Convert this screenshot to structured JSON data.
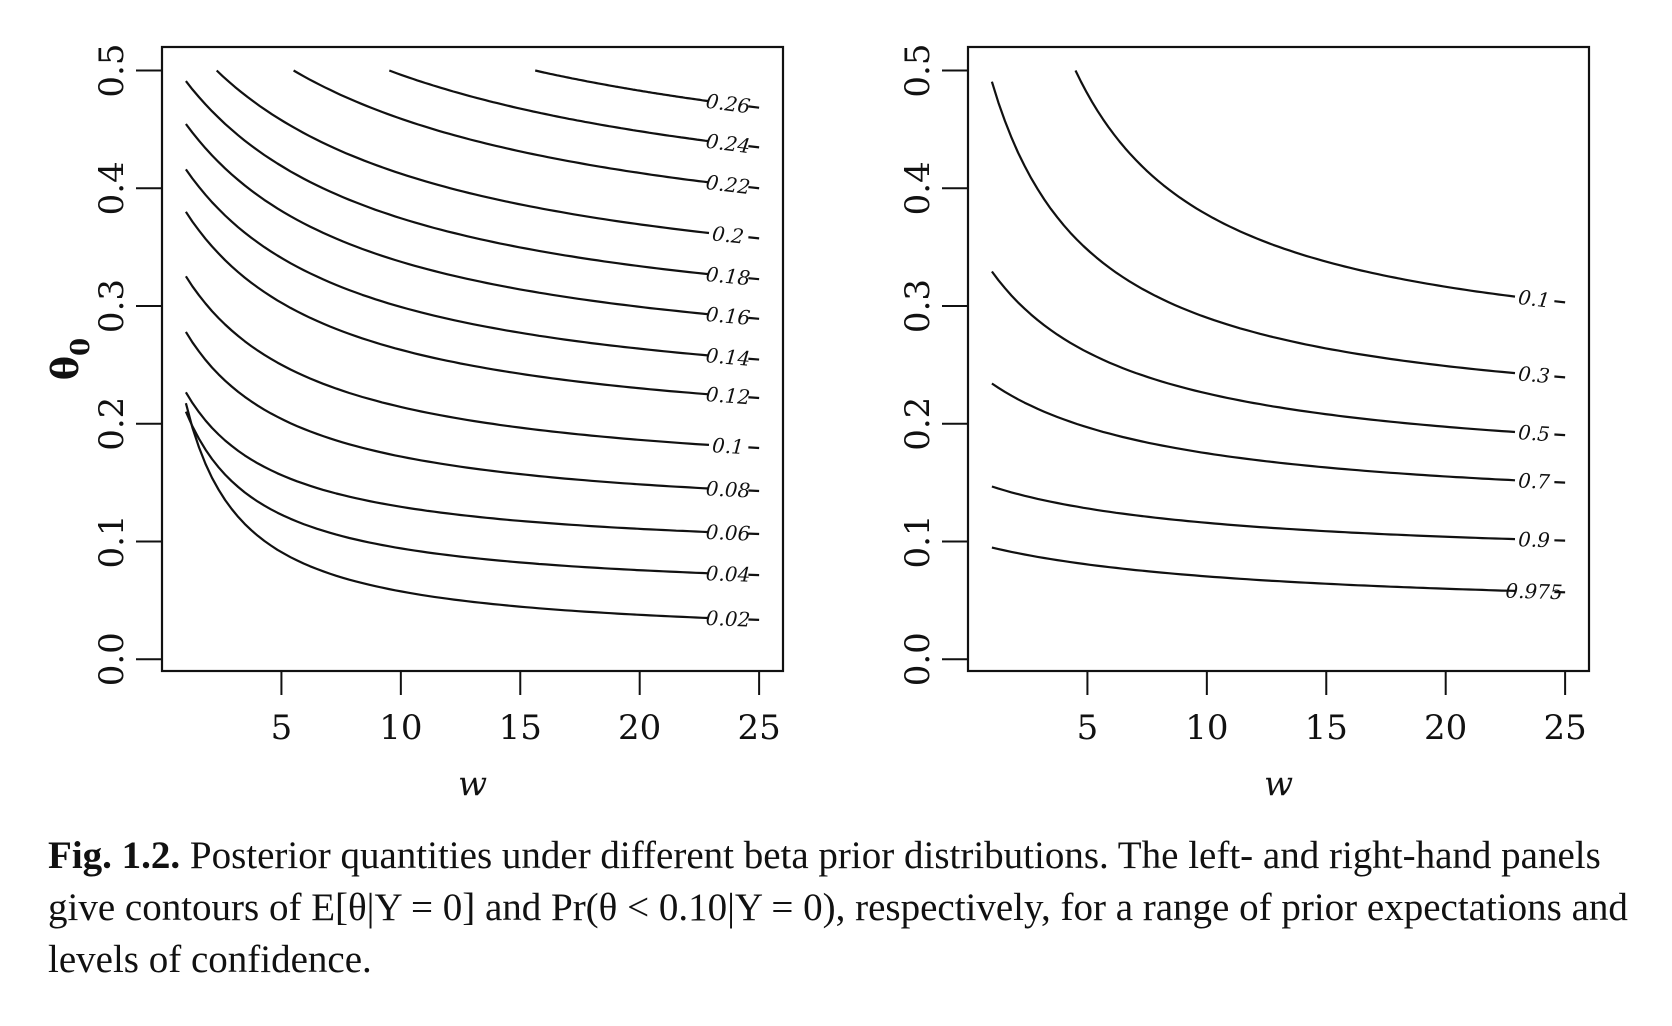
{
  "chart_data": [
    {
      "type": "line",
      "subtype": "contour",
      "title": "",
      "xlabel": "w",
      "ylabel": "θ0",
      "xlim": [
        0,
        26
      ],
      "ylim": [
        -0.01,
        0.52
      ],
      "xticks": [
        5,
        10,
        15,
        20,
        25
      ],
      "xtick_labels": [
        "5",
        "10",
        "15",
        "20",
        "25"
      ],
      "yticks": [
        0.0,
        0.1,
        0.2,
        0.3,
        0.4,
        0.5
      ],
      "ytick_labels": [
        "0.0",
        "0.1",
        "0.2",
        "0.3",
        "0.4",
        "0.5"
      ],
      "grid": false,
      "contour_levels": [
        "0.02",
        "0.04",
        "0.06",
        "0.08",
        "0.1",
        "0.12",
        "0.14",
        "0.16",
        "0.18",
        "0.2",
        "0.22",
        "0.24",
        "0.26"
      ],
      "label_positions_y": [
        0.035,
        0.073,
        0.108,
        0.145,
        0.182,
        0.225,
        0.258,
        0.293,
        0.327,
        0.362,
        0.405,
        0.44,
        0.474
      ]
    },
    {
      "type": "line",
      "subtype": "contour",
      "title": "",
      "xlabel": "w",
      "ylabel": "",
      "xlim": [
        0,
        26
      ],
      "ylim": [
        -0.01,
        0.52
      ],
      "xticks": [
        5,
        10,
        15,
        20,
        25
      ],
      "xtick_labels": [
        "5",
        "10",
        "15",
        "20",
        "25"
      ],
      "yticks": [
        0.0,
        0.1,
        0.2,
        0.3,
        0.4,
        0.5
      ],
      "ytick_labels": [
        "0.0",
        "0.1",
        "0.2",
        "0.3",
        "0.4",
        "0.5"
      ],
      "grid": false,
      "contour_levels": [
        "0.1",
        "0.3",
        "0.5",
        "0.7",
        "0.9",
        "0.975"
      ],
      "label_positions_y": [
        0.308,
        0.243,
        0.193,
        0.152,
        0.102,
        0.058
      ]
    }
  ],
  "caption": {
    "figure_number": "Fig. 1.2.",
    "text": "Posterior quantities under different beta prior distributions. The left- and right-hand panels give contours of E[θ|Y = 0] and Pr(θ < 0.10|Y = 0), respectively, for a range of prior expectations and levels of confidence."
  }
}
